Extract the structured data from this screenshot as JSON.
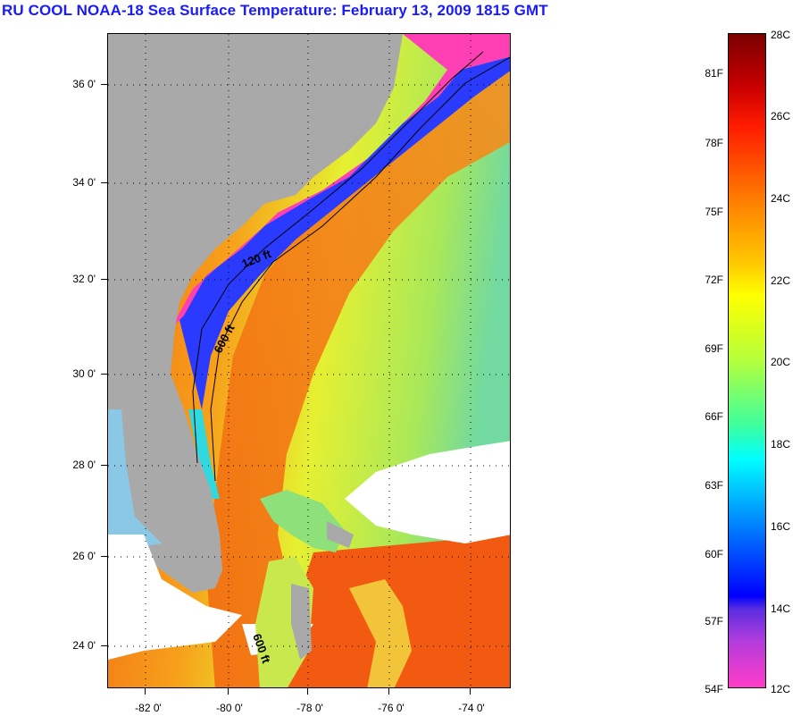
{
  "title": "RU COOL  NOAA-18  Sea Surface Temperature:  February 13, 2009 1815 GMT",
  "map": {
    "lat_labels": [
      "36 0'",
      "34 0'",
      "32 0'",
      "30 0'",
      "28 0'",
      "26 0'",
      "24 0'"
    ],
    "lon_labels": [
      "-82 0'",
      "-80 0'",
      "-78 0'",
      "-76 0'",
      "-74 0'"
    ],
    "isobath_labels": [
      "120 ft",
      "600 ft",
      "600 ft"
    ],
    "colors": {
      "land": "#a9a9a9",
      "cloud": "#ffffff",
      "gulf_stream": "#f26a10",
      "cold_shelf": "#ff3fb4"
    }
  },
  "colorbar": {
    "fahrenheit_labels": [
      "81F",
      "78F",
      "75F",
      "72F",
      "69F",
      "66F",
      "63F",
      "60F",
      "57F",
      "54F"
    ],
    "celsius_labels": [
      "28C",
      "26C",
      "24C",
      "22C",
      "20C",
      "18C",
      "16C",
      "14C",
      "12C"
    ]
  }
}
